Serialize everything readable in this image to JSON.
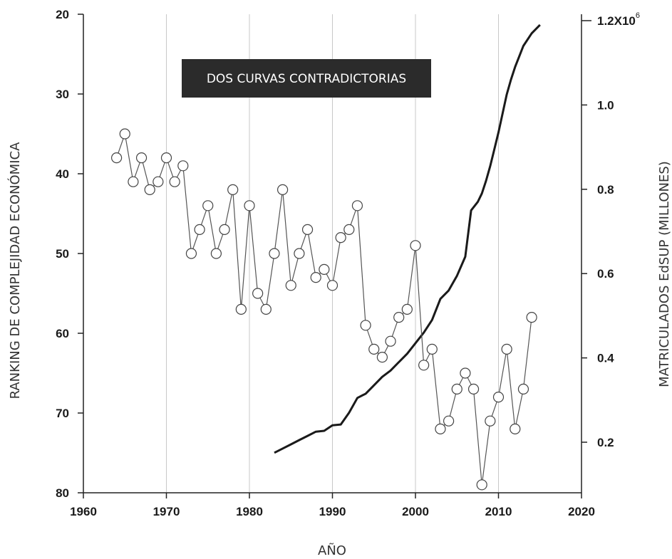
{
  "chart_data": {
    "type": "line",
    "title": "",
    "annotation": "DOS CURVAS CONTRADICTORIAS",
    "xlabel": "AÑO",
    "ylabel_left": "RANKING DE COMPLEJIDAD ECONÓMICA",
    "ylabel_right": "MATRICULADOS EdSUP (MILLONES)",
    "x_ticks": [
      "1960",
      "1970",
      "1980",
      "1990",
      "2000",
      "2010",
      "2020"
    ],
    "y_left_ticks": [
      "20",
      "30",
      "40",
      "50",
      "60",
      "70",
      "80"
    ],
    "y_right_ticks": [
      "0.2",
      "0.4",
      "0.6",
      "0.8",
      "1.0"
    ],
    "y_right_top_label": "1.2X10",
    "y_right_top_exponent": "6",
    "xlim": [
      1960,
      2020
    ],
    "ylim_left": [
      20,
      80
    ],
    "ylim_left_inverted": true,
    "ylim_right_ticks_values": [
      0.2,
      0.4,
      0.6,
      0.8,
      1.0,
      1.2
    ],
    "grid": "vertical-major",
    "series": [
      {
        "name": "",
        "axis": "left",
        "marker": "circle",
        "color": "#555555",
        "x": [
          1964,
          1965,
          1966,
          1967,
          1968,
          1969,
          1970,
          1971,
          1972,
          1973,
          1974,
          1975,
          1976,
          1977,
          1978,
          1979,
          1980,
          1981,
          1982,
          1983,
          1984,
          1985,
          1986,
          1987,
          1988,
          1989,
          1990,
          1991,
          1992,
          1993,
          1994,
          1995,
          1996,
          1997,
          1998,
          1999,
          2000,
          2001,
          2002,
          2003,
          2004,
          2005,
          2006,
          2007,
          2008,
          2009,
          2010,
          2011,
          2012,
          2013,
          2014
        ],
        "y": [
          38,
          35,
          41,
          38,
          42,
          41,
          38,
          41,
          39,
          50,
          47,
          44,
          50,
          47,
          42,
          57,
          44,
          55,
          57,
          50,
          42,
          54,
          50,
          47,
          53,
          52,
          54,
          48,
          47,
          44,
          59,
          62,
          63,
          61,
          58,
          57,
          49,
          64,
          62,
          72,
          71,
          67,
          65,
          67,
          79,
          71,
          68,
          62,
          72,
          67,
          58
        ]
      },
      {
        "name": "",
        "axis": "right",
        "color": "#1a1a1a",
        "x": [
          1983,
          1984,
          1985,
          1986,
          1987,
          1988,
          1989,
          1990,
          1991,
          1992,
          1993,
          1994,
          1995,
          1996,
          1997,
          1998,
          1999,
          2000,
          2001,
          2002,
          2003,
          2004,
          2005,
          2006,
          2006.7,
          2007.5,
          2008,
          2008.5,
          2009,
          2009.5,
          2010,
          2010.5,
          2011,
          2011.5,
          2012,
          2012.5,
          2013,
          2014,
          2015
        ],
        "y": [
          0.175,
          0.185,
          0.195,
          0.205,
          0.215,
          0.225,
          0.227,
          0.24,
          0.242,
          0.27,
          0.305,
          0.315,
          0.335,
          0.355,
          0.37,
          0.39,
          0.41,
          0.435,
          0.46,
          0.49,
          0.54,
          0.56,
          0.595,
          0.64,
          0.75,
          0.77,
          0.79,
          0.82,
          0.855,
          0.895,
          0.935,
          0.98,
          1.025,
          1.06,
          1.09,
          1.115,
          1.14,
          1.17,
          1.19
        ]
      }
    ]
  }
}
